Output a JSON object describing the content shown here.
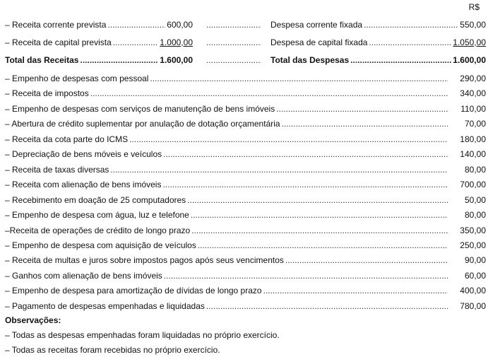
{
  "currency": "R$",
  "budget": {
    "revenues": [
      {
        "label": "– Receita corrente prevista",
        "value": "600,00"
      },
      {
        "label": "– Receita de capital prevista",
        "value": "1.000,00"
      }
    ],
    "revenues_total": {
      "label": "Total das Receitas",
      "value": "1.600,00"
    },
    "expenses": [
      {
        "label": "Despesa corrente fixada",
        "value": "550,00"
      },
      {
        "label": "Despesa de capital fixada",
        "value": "1.050,00"
      }
    ],
    "expenses_total": {
      "label": "Total das Despesas",
      "value": "1.600,00"
    }
  },
  "items": [
    {
      "label": "– Empenho de despesas com pessoal",
      "value": "290,00"
    },
    {
      "label": "– Receita de impostos",
      "value": "340,00"
    },
    {
      "label": "– Empenho de despesas com serviços de manutenção de bens imóveis",
      "value": "110,00"
    },
    {
      "label": "– Abertura de crédito suplementar por anulação de dotação orçamentária",
      "value": "70,00"
    },
    {
      "label": "– Receita da cota parte do ICMS",
      "value": "180,00"
    },
    {
      "label": "– Depreciação de bens móveis e veículos",
      "value": "140,00"
    },
    {
      "label": "– Receita de taxas diversas",
      "value": "80,00"
    },
    {
      "label": "– Receita com alienação de bens imóveis",
      "value": "700,00"
    },
    {
      "label": "– Recebimento em doação de 25 computadores",
      "value": "50,00"
    },
    {
      "label": "– Empenho de despesa com água, luz e telefone",
      "value": "80,00"
    },
    {
      "label": "–Receita de operações de crédito de longo prazo",
      "value": "350,00"
    },
    {
      "label": "– Empenho de despesa com aquisição de veículos",
      "value": "250,00"
    },
    {
      "label": "– Receita de multas e juros sobre impostos pagos após seus vencimentos",
      "value": "90,00"
    },
    {
      "label": "– Ganhos com alienação de  bens imóveis",
      "value": "60,00"
    },
    {
      "label": "– Empenho de despesa para amortização de dívidas de longo prazo",
      "value": "400,00"
    },
    {
      "label": "– Pagamento de despesas empenhadas e liquidadas",
      "value": "780,00"
    }
  ],
  "observations": {
    "title": "Observações:",
    "notes": [
      "– Todas as despesas empenhadas foram liquidadas no próprio exercício.",
      "– Todas as receitas foram recebidas no próprio exercício."
    ]
  }
}
